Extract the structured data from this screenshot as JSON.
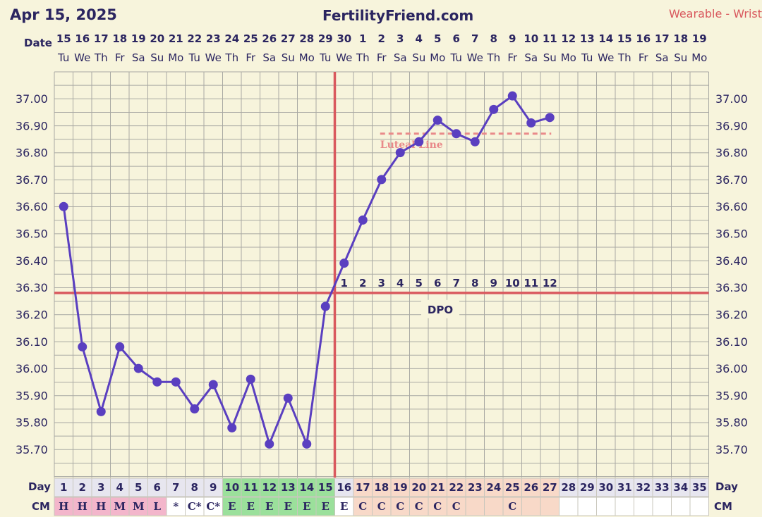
{
  "header": {
    "date": "Apr 15, 2025",
    "site": "FertilityFriend.com",
    "wearable": "Wearable - Wrist"
  },
  "colors": {
    "background": "#f7f4dc",
    "grid": "#a9a9a3",
    "line": "#5a3fc0",
    "coverline": "#d9595e",
    "luteal": "#e98a8a",
    "text": "#2b2560",
    "cm_period": "#f3b6cb",
    "cm_egg": "#9be09b",
    "cm_creamy": "#f8d9c8"
  },
  "chart_data": {
    "type": "line",
    "date_label": "Date",
    "day_label": "Day",
    "cm_label": "CM",
    "dpo_label": "DPO",
    "luteal_label": "Luteal Line",
    "dates": [
      "15",
      "16",
      "17",
      "18",
      "19",
      "20",
      "21",
      "22",
      "23",
      "24",
      "25",
      "26",
      "27",
      "28",
      "29",
      "30",
      "1",
      "2",
      "3",
      "4",
      "5",
      "6",
      "7",
      "8",
      "9",
      "10",
      "11",
      "12",
      "13",
      "14",
      "15",
      "16",
      "17",
      "18",
      "19"
    ],
    "weekdays": [
      "Tu",
      "We",
      "Th",
      "Fr",
      "Sa",
      "Su",
      "Mo",
      "Tu",
      "We",
      "Th",
      "Fr",
      "Sa",
      "Su",
      "Mo",
      "Tu",
      "We",
      "Th",
      "Fr",
      "Sa",
      "Su",
      "Mo",
      "Tu",
      "We",
      "Th",
      "Fr",
      "Sa",
      "Su",
      "Mo",
      "Tu",
      "We",
      "Th",
      "Fr",
      "Sa",
      "Su",
      "Mo"
    ],
    "cycle_days": [
      "1",
      "2",
      "3",
      "4",
      "5",
      "6",
      "7",
      "8",
      "9",
      "10",
      "11",
      "12",
      "13",
      "14",
      "15",
      "16",
      "17",
      "18",
      "19",
      "20",
      "21",
      "22",
      "23",
      "24",
      "25",
      "26",
      "27",
      "28",
      "29",
      "30",
      "31",
      "32",
      "33",
      "34",
      "35"
    ],
    "cm": [
      "H",
      "H",
      "H",
      "M",
      "M",
      "L",
      "*",
      "C*",
      "C*",
      "E",
      "E",
      "E",
      "E",
      "E",
      "E",
      "E",
      "C",
      "C",
      "C",
      "C",
      "C",
      "C",
      "",
      "",
      "C",
      "",
      "",
      "",
      "",
      "",
      "",
      "",
      "",
      "",
      ""
    ],
    "cm_highlight": [
      "period",
      "period",
      "period",
      "period",
      "period",
      "period",
      "",
      "",
      "",
      "egg",
      "egg",
      "egg",
      "egg",
      "egg",
      "egg",
      "",
      "creamy",
      "creamy",
      "creamy",
      "creamy",
      "creamy",
      "creamy",
      "creamy",
      "creamy",
      "creamy",
      "creamy",
      "creamy",
      "",
      "",
      "",
      "",
      "",
      "",
      "",
      ""
    ],
    "temps": [
      36.6,
      36.08,
      35.84,
      36.08,
      36.0,
      35.95,
      35.95,
      35.85,
      35.94,
      35.78,
      35.96,
      35.72,
      35.89,
      35.72,
      36.23,
      36.39,
      36.55,
      36.7,
      36.8,
      36.84,
      36.92,
      36.87,
      36.84,
      36.96,
      37.01,
      36.91,
      36.93
    ],
    "y_ticks": [
      "37.00",
      "36.90",
      "36.80",
      "36.70",
      "36.60",
      "36.50",
      "36.40",
      "36.30",
      "36.20",
      "36.10",
      "36.00",
      "35.90",
      "35.80",
      "35.70"
    ],
    "ylim": [
      35.64,
      37.12
    ],
    "coverline": 36.28,
    "ovulation_day": 15,
    "dpo_numbers": [
      "1",
      "2",
      "3",
      "4",
      "5",
      "6",
      "7",
      "8",
      "9",
      "10",
      "11",
      "12"
    ],
    "luteal_line": {
      "value": 36.87,
      "from_day": 18,
      "to_day": 27
    }
  }
}
